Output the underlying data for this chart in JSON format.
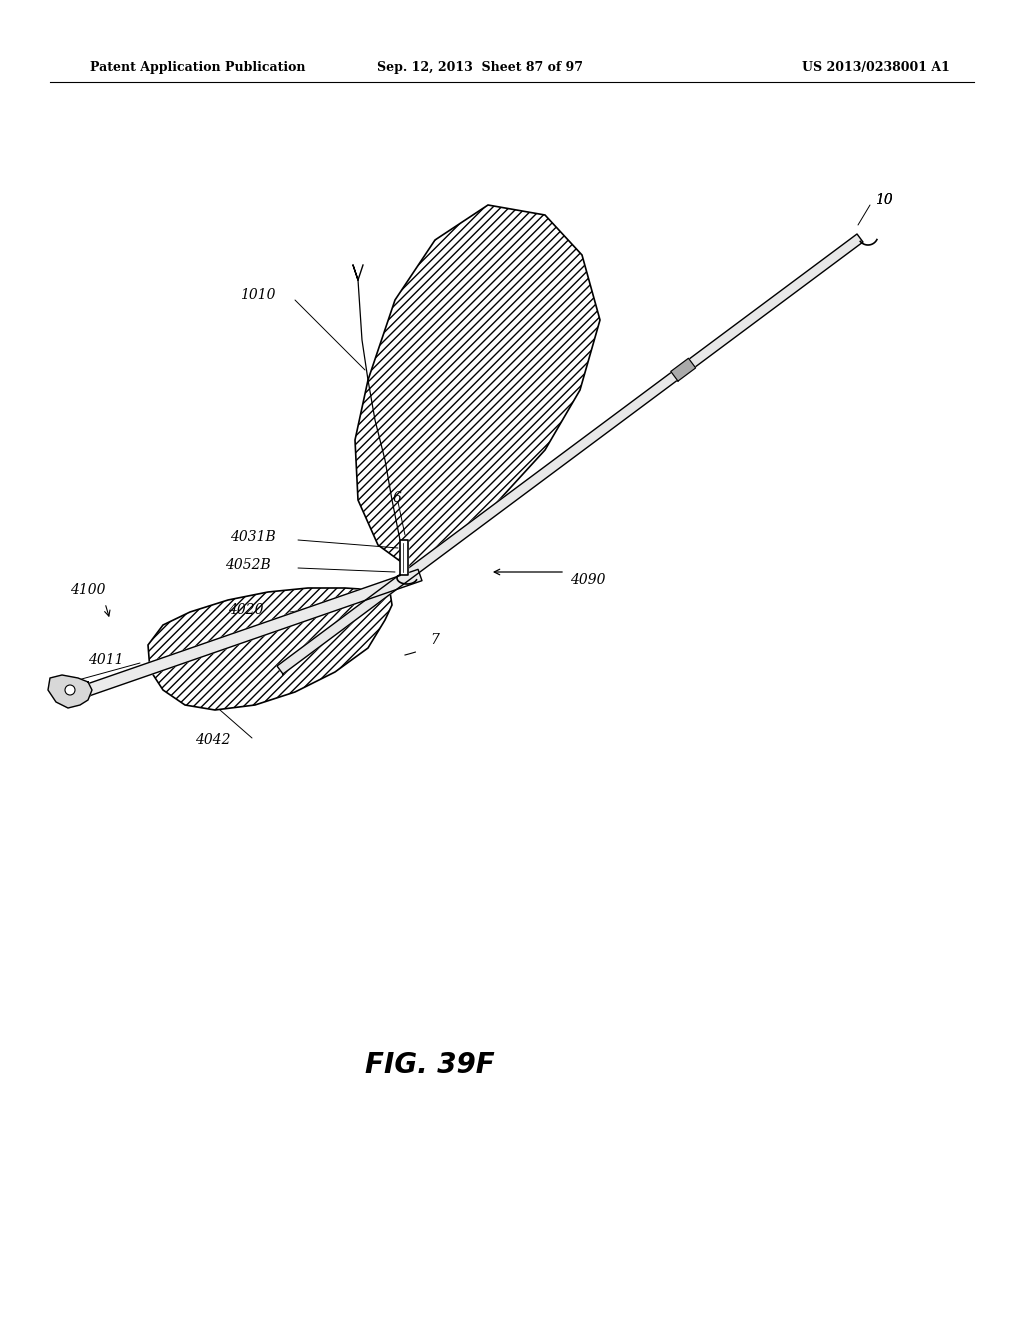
{
  "bg_color": "#ffffff",
  "header_left": "Patent Application Publication",
  "header_mid": "Sep. 12, 2013  Sheet 87 of 97",
  "header_right": "US 2013/0238001 A1",
  "figure_label": "FIG. 39F"
}
